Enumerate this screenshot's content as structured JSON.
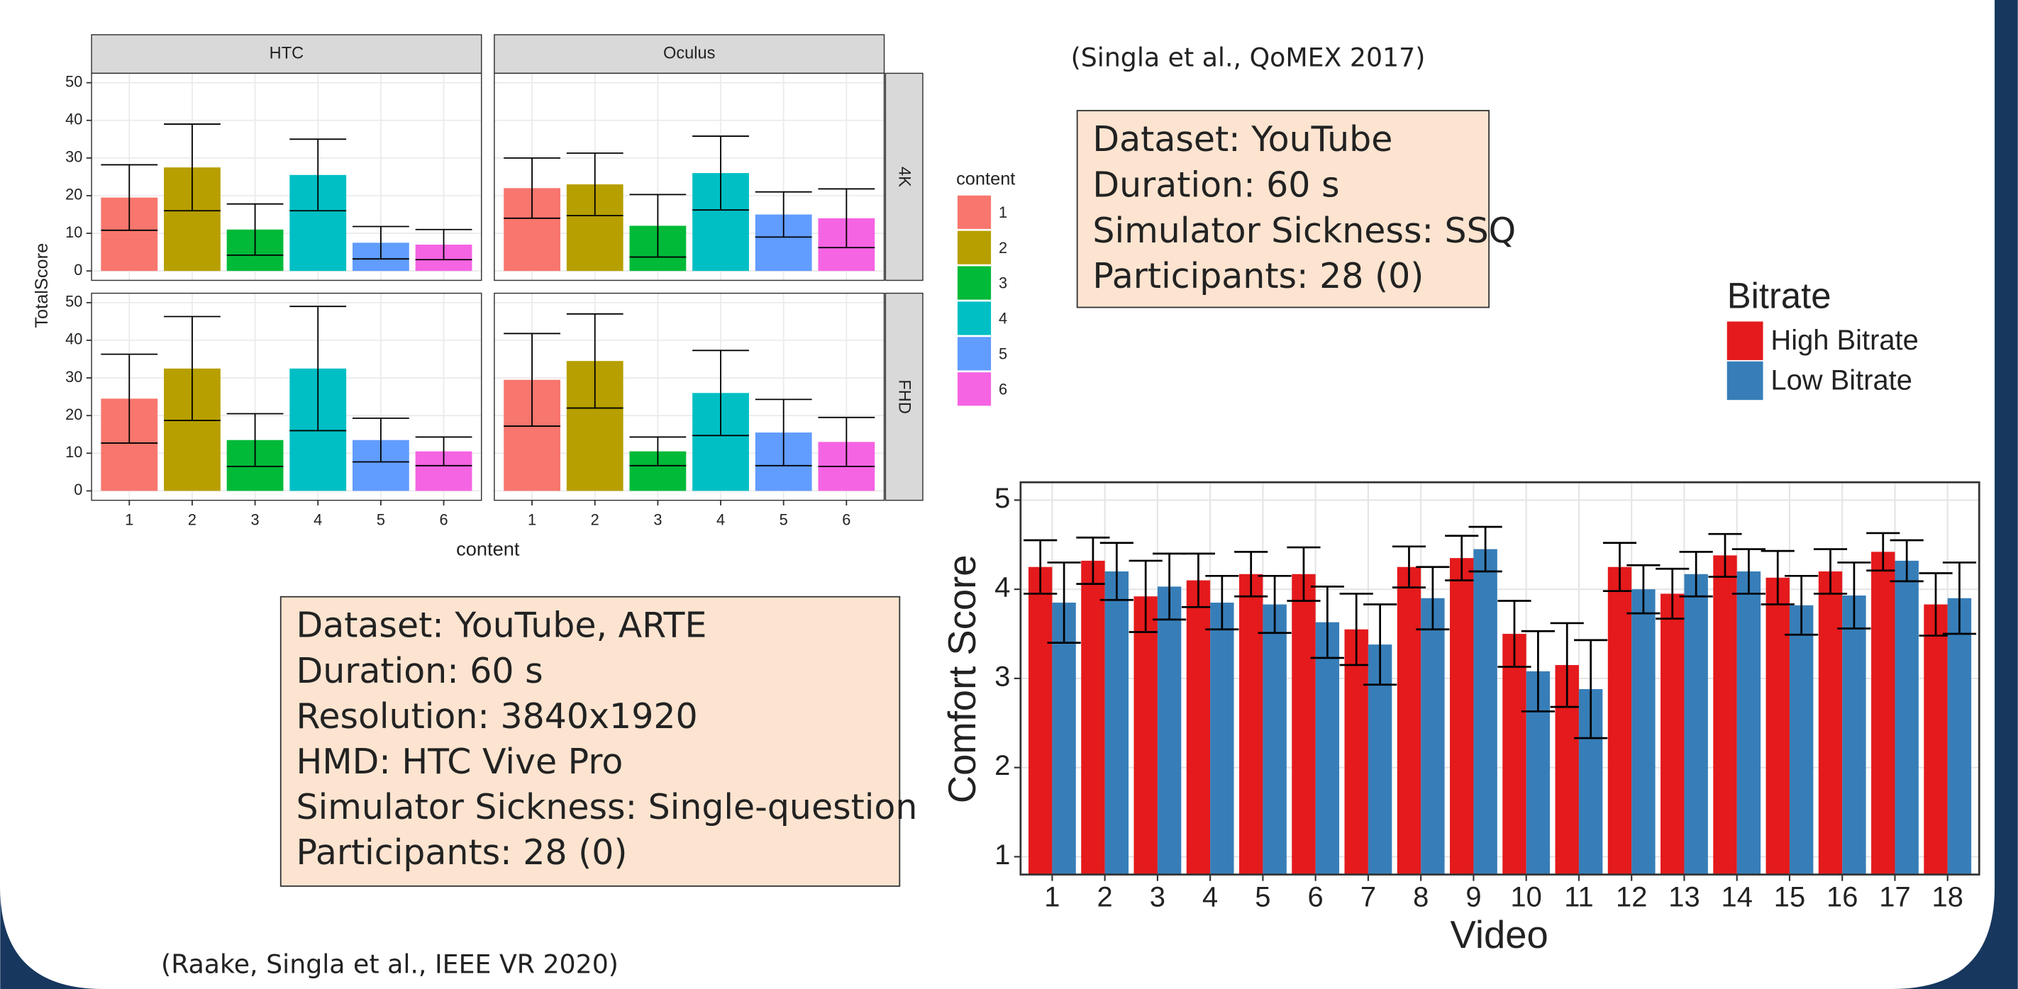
{
  "chart_data": [
    {
      "type": "faceted-bar",
      "columns": [
        "HTC",
        "Oculus"
      ],
      "rows": [
        "4K",
        "FHD"
      ],
      "categories": [
        "1",
        "2",
        "3",
        "4",
        "5",
        "6"
      ],
      "colors": [
        "#F8766D",
        "#B79F00",
        "#00BA38",
        "#00BFC4",
        "#619CFF",
        "#F564E3"
      ],
      "panels": [
        [
          {
            "values": [
              19.5,
              27.5,
              11,
              25.5,
              7.5,
              7
            ],
            "errors": [
              8.7,
              11.5,
              6.8,
              9.5,
              4.3,
              4
            ]
          },
          {
            "values": [
              22,
              23,
              12,
              26,
              15,
              14
            ],
            "errors": [
              8,
              8.3,
              8.3,
              9.8,
              6,
              7.8
            ]
          }
        ],
        [
          {
            "values": [
              24.5,
              32.5,
              13.5,
              32.5,
              13.5,
              10.5
            ],
            "errors": [
              11.8,
              13.8,
              7,
              16.5,
              5.8,
              3.8
            ]
          },
          {
            "values": [
              29.5,
              34.5,
              10.5,
              26,
              15.5,
              13
            ],
            "errors": [
              12.3,
              12.5,
              3.8,
              11.3,
              8.8,
              6.5
            ]
          }
        ]
      ],
      "y_label": "TotalScore",
      "x_label": "content",
      "legend_title": "content",
      "ylim": [
        -2.5,
        52.5
      ],
      "yticks": [
        0,
        10,
        20,
        30,
        40,
        50
      ],
      "grid": true
    },
    {
      "type": "grouped-bar",
      "categories": [
        "1",
        "2",
        "3",
        "4",
        "5",
        "6",
        "7",
        "8",
        "9",
        "10",
        "11",
        "12",
        "13",
        "14",
        "15",
        "16",
        "17",
        "18"
      ],
      "series": [
        {
          "name": "High Bitrate",
          "color": "#E41A1C",
          "values": [
            4.25,
            4.32,
            3.92,
            4.1,
            4.17,
            4.17,
            3.55,
            4.25,
            4.35,
            3.5,
            3.15,
            4.25,
            3.95,
            4.38,
            4.13,
            4.2,
            4.42,
            3.83
          ],
          "errors": [
            0.3,
            0.26,
            0.4,
            0.3,
            0.25,
            0.3,
            0.4,
            0.23,
            0.25,
            0.37,
            0.47,
            0.27,
            0.28,
            0.24,
            0.3,
            0.25,
            0.21,
            0.35
          ]
        },
        {
          "name": "Low Bitrate",
          "color": "#377EB8",
          "values": [
            3.85,
            4.2,
            4.03,
            3.85,
            3.83,
            3.63,
            3.38,
            3.9,
            4.45,
            3.08,
            2.88,
            4.0,
            4.17,
            4.2,
            3.82,
            3.93,
            4.32,
            3.9
          ],
          "errors": [
            0.45,
            0.32,
            0.37,
            0.3,
            0.32,
            0.4,
            0.45,
            0.35,
            0.25,
            0.45,
            0.55,
            0.27,
            0.25,
            0.25,
            0.33,
            0.37,
            0.23,
            0.4
          ]
        }
      ],
      "y_label": "Comfort Score",
      "x_label": "Video",
      "legend_title": "Bitrate",
      "ylim": [
        0.8,
        5.2
      ],
      "yticks": [
        1,
        2,
        3,
        4,
        5
      ],
      "grid": true
    }
  ],
  "citations": [
    "(Singla et al., QoMEX 2017)",
    "(Raake, Singla et al., IEEE VR 2020)"
  ],
  "info_boxes": [
    {
      "lines": [
        "Dataset: YouTube",
        "Duration: 60 s",
        "Simulator Sickness: SSQ",
        "Participants: 28 (0)"
      ]
    },
    {
      "lines": [
        "Dataset: YouTube, ARTE",
        "Duration: 60 s",
        "Resolution: 3840x1920",
        "HMD: HTC Vive Pro",
        "Simulator Sickness: Single-question",
        "Participants: 28 (0)"
      ]
    }
  ]
}
